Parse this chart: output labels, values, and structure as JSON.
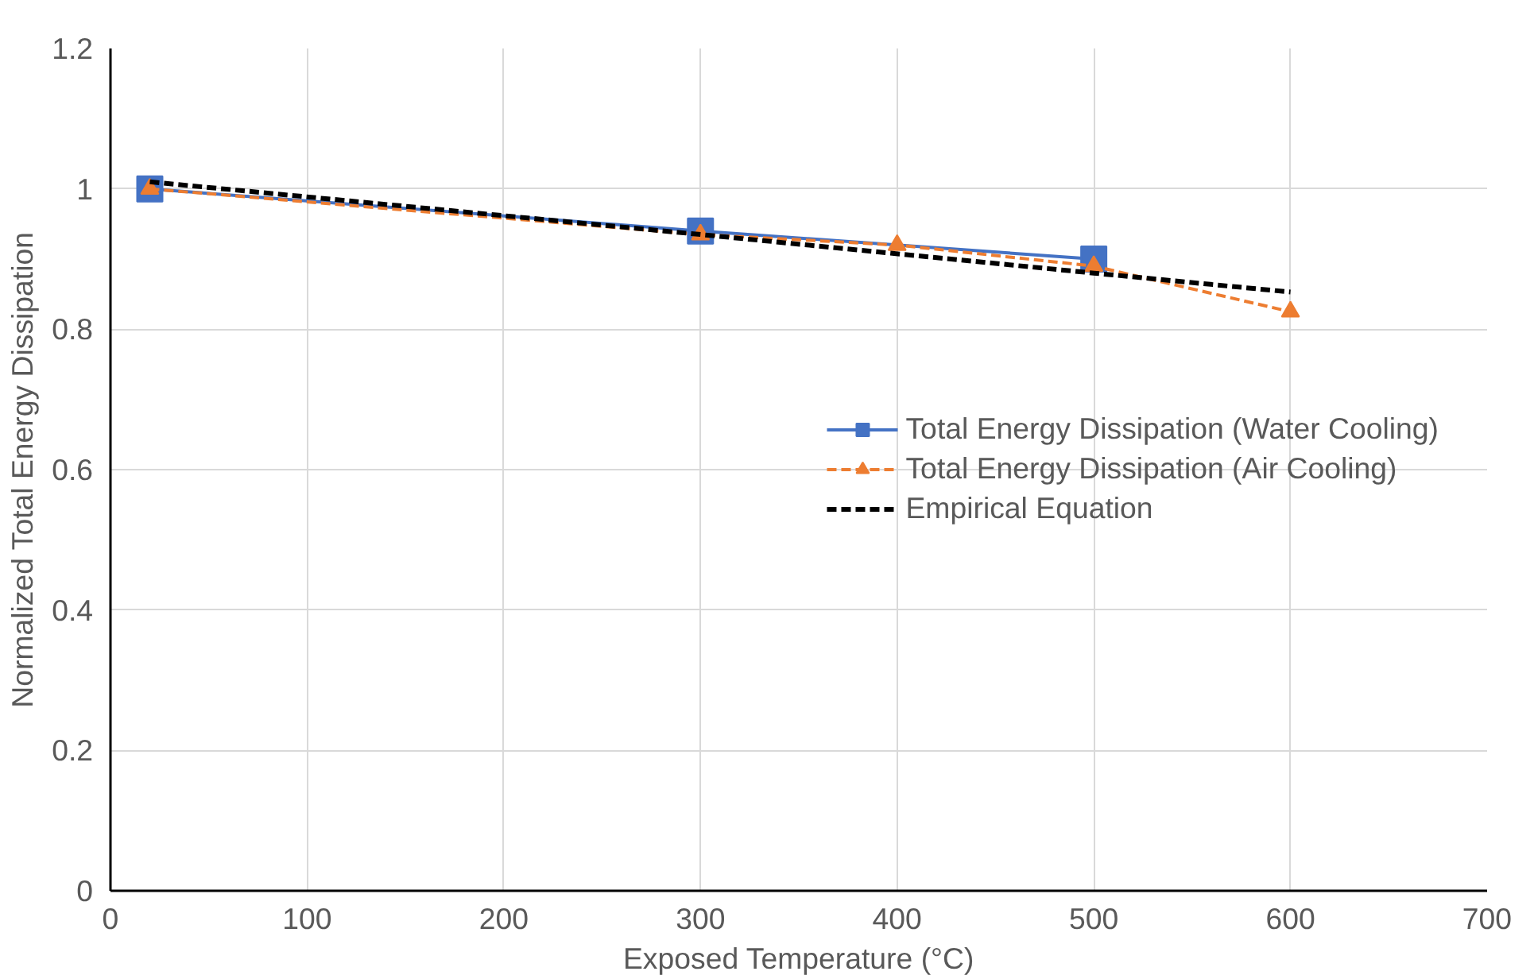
{
  "chart_data": {
    "type": "line",
    "xlabel": "Exposed Temperature (°C)",
    "ylabel": "Normalized Total Energy Dissipation",
    "xlim": [
      0,
      700
    ],
    "xticks": [
      0,
      100,
      200,
      300,
      400,
      500,
      600,
      700
    ],
    "ylim": [
      0,
      1.2
    ],
    "yticks": [
      0,
      {
        "value": 0.2,
        "label": "0.2"
      },
      {
        "value": 0.4,
        "label": "0.4"
      },
      {
        "value": 0.6,
        "label": "0.6"
      },
      {
        "value": 0.8,
        "label": "0.8"
      },
      1,
      {
        "value": 1.2,
        "label": "1.2"
      }
    ],
    "grid": true,
    "legend": "right",
    "series": [
      {
        "name": "Total Energy Dissipation (Water Cooling)",
        "color": "#4472c4",
        "x": [
          20,
          300,
          500
        ],
        "values": [
          1.0,
          0.94,
          0.9
        ],
        "marker": "square",
        "line_style": "solid"
      },
      {
        "name": "Total Energy Dissipation (Air Cooling)",
        "color": "#ed7d31",
        "x": [
          20,
          300,
          400,
          500,
          600
        ],
        "values": [
          1.0,
          0.935,
          0.92,
          0.89,
          0.825
        ],
        "marker": "triangle",
        "line_style": "dashed"
      },
      {
        "name": "Empirical Equation",
        "color": "#000000",
        "x": [
          20,
          300,
          500,
          600
        ],
        "values": [
          1.01,
          0.935,
          0.88,
          0.853
        ],
        "marker": "none",
        "line_style": "dashed"
      }
    ]
  }
}
